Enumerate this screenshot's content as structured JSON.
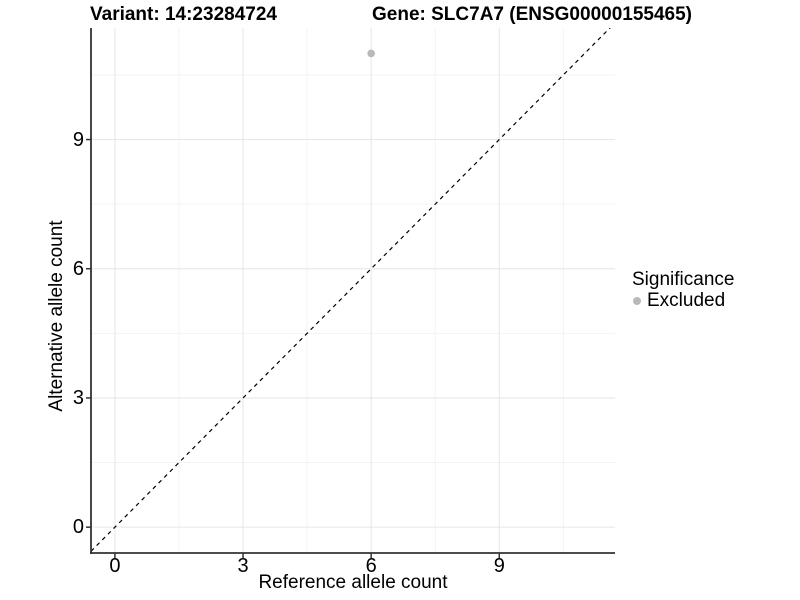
{
  "chart_data": {
    "type": "scatter",
    "title_left": "Variant: 14:23284724",
    "title_right": "Gene: SLC7A7 (ENSG00000155465)",
    "xlabel": "Reference allele count",
    "ylabel": "Alternative allele count",
    "xlim": [
      -0.56,
      11.71
    ],
    "ylim": [
      -0.6,
      11.59
    ],
    "x_ticks": [
      0,
      3,
      6,
      9
    ],
    "y_ticks": [
      0,
      3,
      6,
      9
    ],
    "x_minor_ticks": [
      1.5,
      4.5,
      7.5,
      10.5
    ],
    "y_minor_ticks": [
      1.5,
      4.5,
      7.5,
      10.5
    ],
    "grid": "major+minor",
    "points": [
      {
        "x": 6,
        "y": 11,
        "series": "Excluded"
      }
    ],
    "reference_line": {
      "slope": 1,
      "intercept": 0,
      "style": "dashed",
      "color": "#000000"
    },
    "legend": {
      "title": "Significance",
      "position": "right",
      "items": [
        {
          "label": "Excluded",
          "color": "#b9b9b9"
        }
      ]
    },
    "colors": {
      "point_excluded": "#b9b9b9",
      "axis_line": "#333333",
      "grid_major": "#e6e6e6",
      "grid_minor": "#f3f3f3",
      "text": "#000000"
    }
  }
}
